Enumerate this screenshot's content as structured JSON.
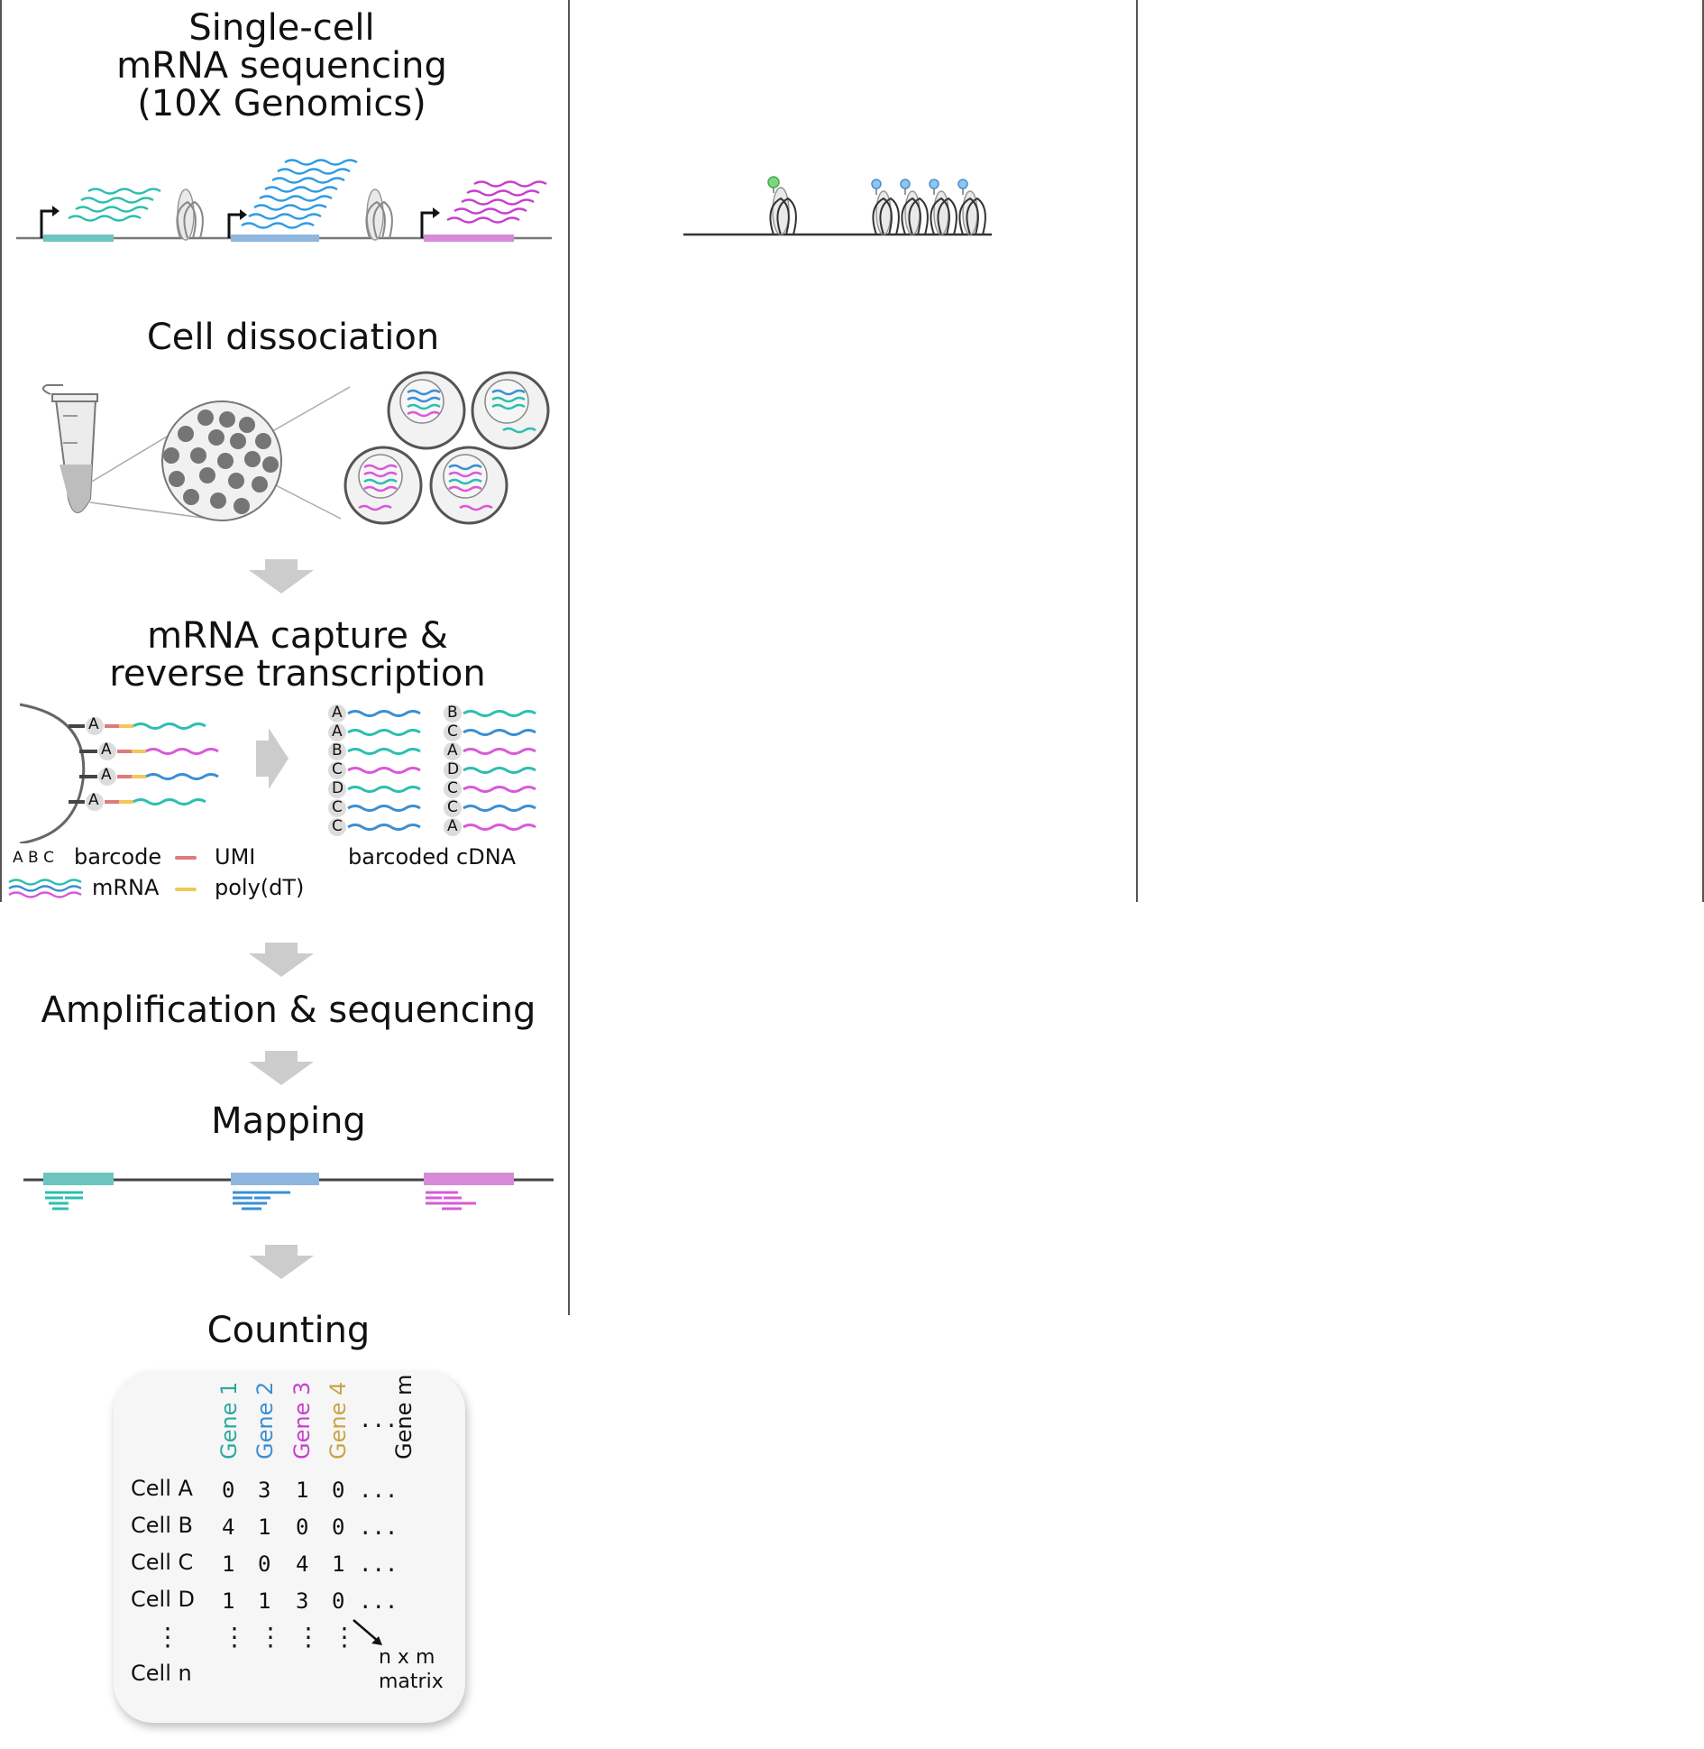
{
  "titles": {
    "main_line1": "Single-cell",
    "main_line2": "mRNA sequencing",
    "main_line3": "(10X Genomics)",
    "dissociation": "Cell dissociation",
    "capture_line1": "mRNA capture &",
    "capture_line2": "reverse transcription",
    "amplification": "Amplification & sequencing",
    "mapping": "Mapping",
    "counting": "Counting"
  },
  "capture": {
    "bead_barcodes": [
      "A",
      "A",
      "A",
      "A"
    ],
    "cdna_col1": [
      "A",
      "A",
      "B",
      "C",
      "D",
      "C",
      "C"
    ],
    "cdna_col2": [
      "B",
      "C",
      "A",
      "D",
      "C",
      "C",
      "A"
    ]
  },
  "legend": {
    "barcode_letters": "A B C",
    "barcode": "barcode",
    "umi": "UMI",
    "mrna": "mRNA",
    "polydt": "poly(dT)",
    "barcoded_cdna": "barcoded cDNA"
  },
  "colors": {
    "teal": "#2bbfb0",
    "blue": "#3a8fd4",
    "magenta": "#d85ad8",
    "gene4": "#c8a545",
    "umi": "#e07a7a",
    "polydt": "#f0c85a",
    "gray_arrow": "#cccccc"
  },
  "matrix": {
    "genes": [
      "Gene 1",
      "Gene 2",
      "Gene 3",
      "Gene 4",
      "...",
      "Gene m"
    ],
    "rows": [
      {
        "cell": "Cell A",
        "values": [
          "0",
          "3",
          "1",
          "0",
          "..."
        ]
      },
      {
        "cell": "Cell B",
        "values": [
          "4",
          "1",
          "0",
          "0",
          "..."
        ]
      },
      {
        "cell": "Cell C",
        "values": [
          "1",
          "0",
          "4",
          "1",
          "..."
        ]
      },
      {
        "cell": "Cell D",
        "values": [
          "1",
          "1",
          "3",
          "0",
          "..."
        ]
      }
    ],
    "vdots": "⋮",
    "last_row": "Cell n",
    "note_line1": "n x m",
    "note_line2": "matrix"
  }
}
